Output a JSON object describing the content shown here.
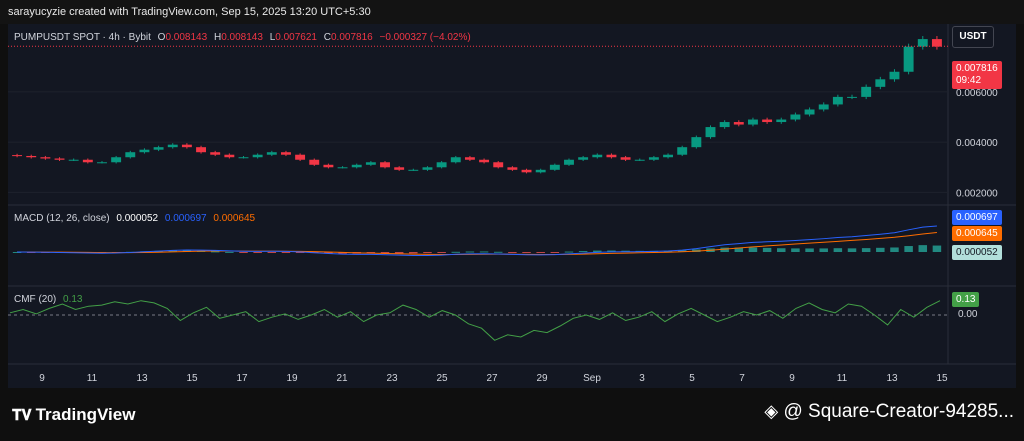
{
  "caption": "sarayucyzie created with TradingView.com, Sep 15, 2025 13:20 UTC+5:30",
  "currency_button": "USDT",
  "symbol_legend": {
    "symbol": "PUMPUSDT SPOT · 4h · Bybit",
    "o_label": "O",
    "o": "0.008143",
    "h_label": "H",
    "h": "0.008143",
    "l_label": "L",
    "l": "0.007621",
    "c_label": "C",
    "c": "0.007816",
    "change": "−0.000327 (−4.02%)"
  },
  "last_price": {
    "value": "0.007816",
    "countdown": "09:42"
  },
  "macd_legend": {
    "title": "MACD (12, 26, close)",
    "hist": "0.000052",
    "macd": "0.000697",
    "signal": "0.000645"
  },
  "cmf_legend": {
    "title": "CMF (20)",
    "value": "0.13"
  },
  "zero_label": "0.00",
  "brand": "TradingView",
  "author": "@ Square-Creator-94285...",
  "colors": {
    "up": "#089981",
    "down": "#f23645",
    "macd": "#2962ff",
    "signal": "#ff6d00",
    "cmf": "#43a047"
  },
  "chart_data": [
    {
      "type": "candlestick",
      "title": "PUMPUSDT SPOT · 4h · Bybit",
      "x_ticks": [
        "9",
        "11",
        "13",
        "15",
        "17",
        "19",
        "21",
        "23",
        "25",
        "27",
        "29",
        "Sep",
        "3",
        "5",
        "7",
        "9",
        "11",
        "13",
        "15"
      ],
      "y_ticks": [
        0.002,
        0.004,
        0.006
      ],
      "ylim": [
        0.0015,
        0.0087
      ],
      "close_approx": [
        0.00345,
        0.0034,
        0.00335,
        0.0033,
        0.0033,
        0.0032,
        0.0032,
        0.0034,
        0.0036,
        0.0037,
        0.0038,
        0.0039,
        0.0038,
        0.0036,
        0.0035,
        0.0034,
        0.0034,
        0.0035,
        0.0036,
        0.0035,
        0.0033,
        0.0031,
        0.003,
        0.003,
        0.0031,
        0.0032,
        0.003,
        0.0029,
        0.0029,
        0.003,
        0.0032,
        0.0034,
        0.0033,
        0.0032,
        0.003,
        0.0029,
        0.0028,
        0.0029,
        0.0031,
        0.0033,
        0.0034,
        0.0035,
        0.0034,
        0.0033,
        0.0033,
        0.0034,
        0.0035,
        0.0038,
        0.0042,
        0.0046,
        0.0048,
        0.0047,
        0.0049,
        0.0048,
        0.0049,
        0.0051,
        0.0053,
        0.0055,
        0.0058,
        0.0058,
        0.0062,
        0.0065,
        0.0068,
        0.0078,
        0.0081,
        0.0078
      ],
      "last_price": 0.007816
    },
    {
      "type": "line",
      "title": "MACD (12, 26, close)",
      "series": [
        {
          "name": "MACD",
          "last": 0.000697
        },
        {
          "name": "Signal",
          "last": 0.000645
        },
        {
          "name": "Histogram",
          "last": 5.2e-05
        }
      ]
    },
    {
      "type": "line",
      "title": "CMF (20)",
      "y_ticks": [
        0.0
      ],
      "values": [
        0.02,
        0.05,
        0.01,
        0.06,
        0.1,
        0.05,
        0.08,
        0.09,
        0.12,
        0.1,
        0.13,
        0.11,
        0.06,
        -0.05,
        0.02,
        0.07,
        -0.03,
        0.0,
        0.03,
        -0.06,
        -0.02,
        0.01,
        -0.04,
        0.0,
        0.05,
        -0.02,
        0.03,
        -0.06,
        0.0,
        0.02,
        0.09,
        0.05,
        -0.02,
        0.04,
        0.0,
        -0.08,
        -0.12,
        -0.23,
        -0.18,
        -0.2,
        -0.14,
        -0.16,
        -0.1,
        -0.03,
        0.0,
        -0.04,
        0.02,
        -0.05,
        -0.02,
        0.03,
        -0.06,
        0.01,
        0.06,
        0.0,
        -0.06,
        -0.02,
        0.03,
        0.0,
        0.04,
        -0.03,
        0.06,
        0.11,
        0.05,
        0.02,
        0.1,
        0.08,
        0.0,
        -0.09,
        0.05,
        -0.02,
        0.07,
        0.13
      ],
      "last": 0.13
    }
  ]
}
